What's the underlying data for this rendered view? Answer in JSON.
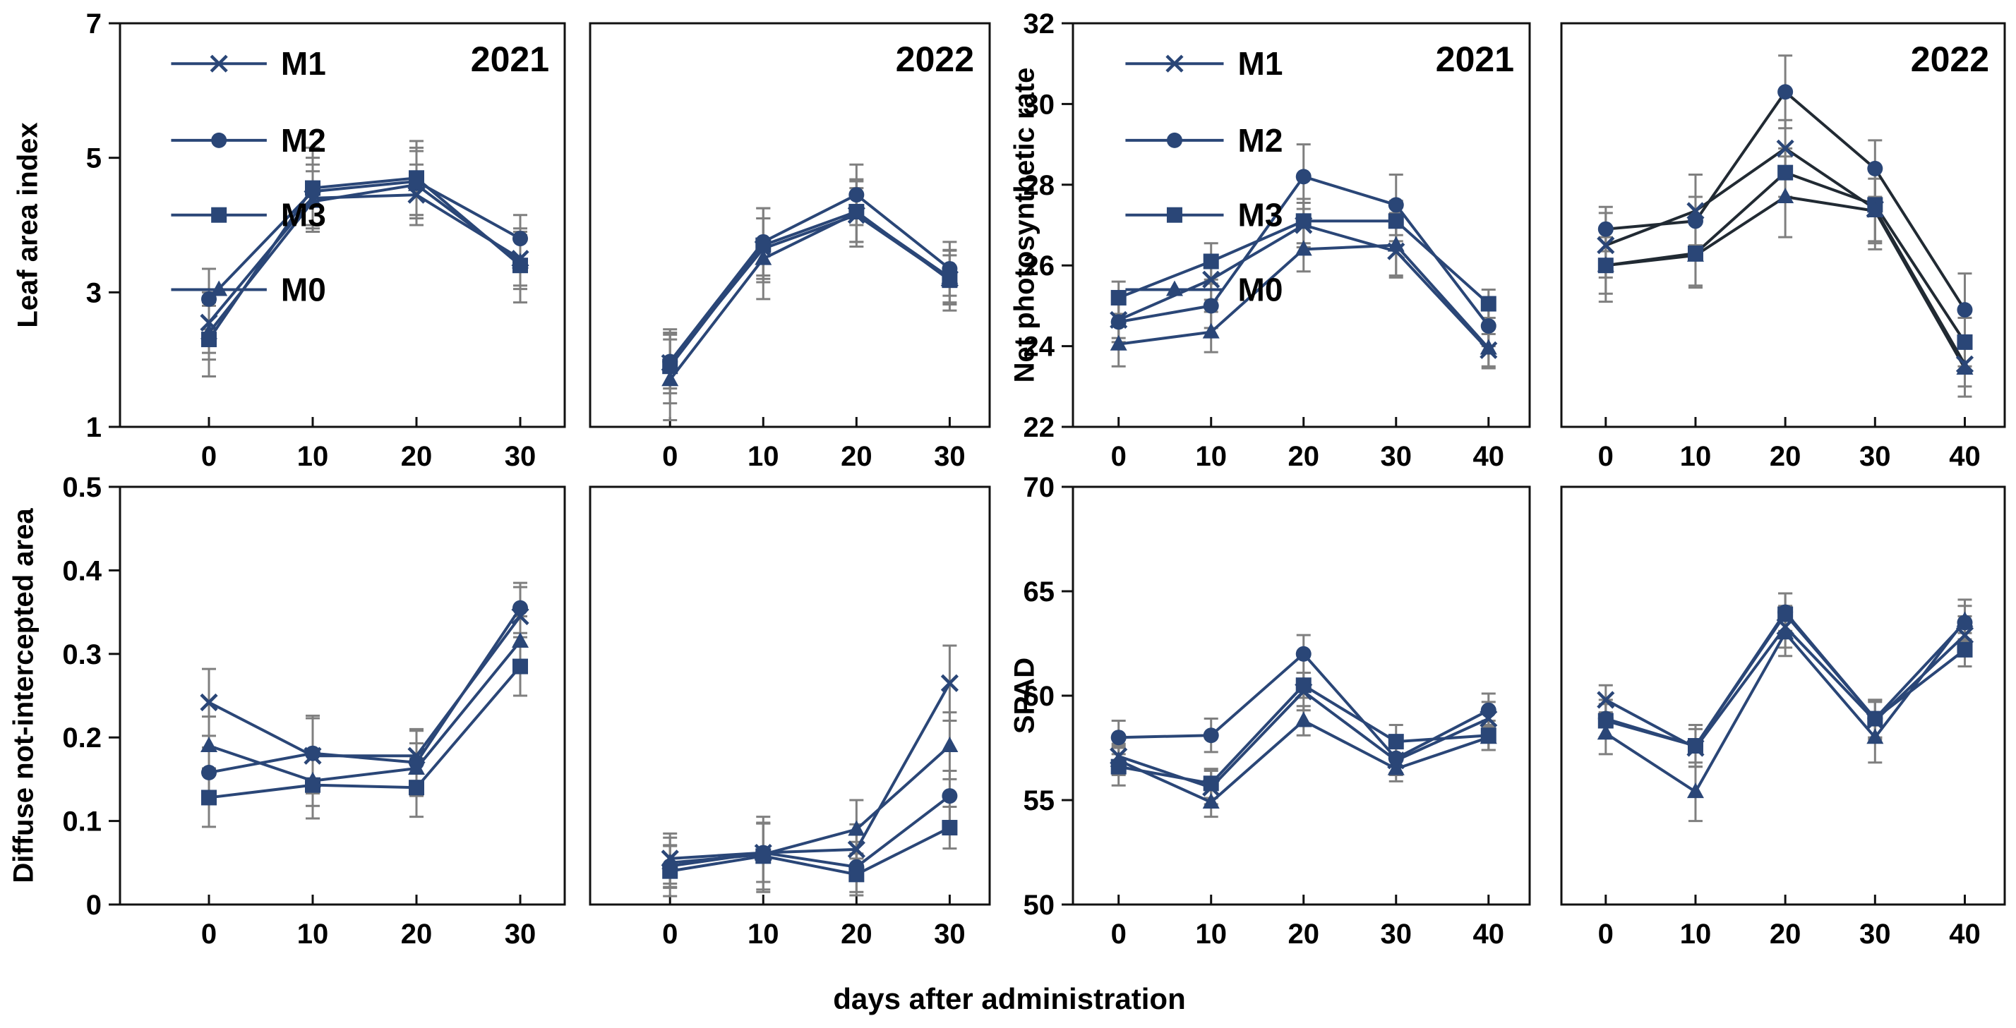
{
  "figure": {
    "xlabel": "days after administration",
    "series_color": "#2a4677",
    "error_color": "#7f7f7f",
    "axis_color": "#111111",
    "legend_labels": [
      "M1",
      "M2",
      "M3",
      "M0"
    ]
  },
  "chart_data": [
    {
      "id": "lai-2021",
      "type": "line",
      "title": "2021",
      "ylabel": "Leaf area index",
      "x": [
        0,
        10,
        20,
        30
      ],
      "xtick_labels": [
        "0",
        "10",
        "20",
        "30"
      ],
      "ylim": [
        1,
        7
      ],
      "yticks": [
        1,
        3,
        5,
        7
      ],
      "ytick_labels": [
        "1",
        "3",
        "5",
        "7"
      ],
      "show_y_tick_labels": true,
      "legend": true,
      "series": [
        {
          "name": "M1",
          "marker": "x",
          "values": [
            2.55,
            4.4,
            4.45,
            3.5
          ],
          "err": [
            0.45,
            0.5,
            0.45,
            0.4
          ]
        },
        {
          "name": "M2",
          "marker": "circle",
          "values": [
            2.9,
            4.5,
            4.65,
            3.8
          ],
          "err": [
            0.45,
            0.5,
            0.5,
            0.35
          ]
        },
        {
          "name": "M3",
          "marker": "square",
          "values": [
            2.3,
            4.55,
            4.7,
            3.4
          ],
          "err": [
            0.55,
            0.6,
            0.55,
            0.55
          ]
        },
        {
          "name": "M0",
          "marker": "triangle",
          "values": [
            2.4,
            4.35,
            4.6,
            3.45
          ],
          "err": [
            0.4,
            0.45,
            0.5,
            0.4
          ]
        }
      ]
    },
    {
      "id": "lai-2022",
      "type": "line",
      "title": "2022",
      "ylabel": "",
      "x": [
        0,
        10,
        20,
        30
      ],
      "xtick_labels": [
        "0",
        "10",
        "20",
        "30"
      ],
      "ylim": [
        1,
        7
      ],
      "yticks": [
        1,
        3,
        5,
        7
      ],
      "ytick_labels": [
        "1",
        "3",
        "5",
        "7"
      ],
      "show_y_tick_labels": false,
      "legend": false,
      "series": [
        {
          "name": "M1",
          "marker": "x",
          "values": [
            1.95,
            3.65,
            4.15,
            3.2
          ],
          "err": [
            0.45,
            0.45,
            0.4,
            0.35
          ]
        },
        {
          "name": "M2",
          "marker": "circle",
          "values": [
            1.97,
            3.75,
            4.45,
            3.35
          ],
          "err": [
            0.4,
            0.5,
            0.45,
            0.4
          ]
        },
        {
          "name": "M3",
          "marker": "square",
          "values": [
            1.9,
            3.7,
            4.2,
            3.18
          ],
          "err": [
            0.55,
            0.55,
            0.45,
            0.45
          ]
        },
        {
          "name": "M0",
          "marker": "triangle",
          "values": [
            1.7,
            3.5,
            4.18,
            3.22
          ],
          "err": [
            0.6,
            0.6,
            0.5,
            0.4
          ]
        }
      ]
    },
    {
      "id": "npr-2021",
      "type": "line",
      "title": "2021",
      "ylabel": "Net photosynthetic rate",
      "x": [
        0,
        10,
        20,
        30,
        40
      ],
      "xtick_labels": [
        "0",
        "10",
        "20",
        "30",
        "40"
      ],
      "ylim": [
        22,
        32
      ],
      "yticks": [
        22,
        24,
        26,
        28,
        30,
        32
      ],
      "ytick_labels": [
        "22",
        "24",
        "26",
        "28",
        "30",
        "32"
      ],
      "show_y_tick_labels": true,
      "legend": true,
      "series": [
        {
          "name": "M1",
          "marker": "x",
          "values": [
            24.65,
            25.65,
            27.0,
            26.35,
            23.9
          ],
          "err": [
            0.45,
            0.5,
            0.55,
            0.6,
            0.4
          ]
        },
        {
          "name": "M2",
          "marker": "circle",
          "values": [
            24.6,
            25.0,
            28.2,
            27.5,
            24.5
          ],
          "err": [
            0.5,
            0.55,
            0.8,
            0.75,
            0.5
          ]
        },
        {
          "name": "M3",
          "marker": "square",
          "values": [
            25.2,
            26.1,
            27.1,
            27.1,
            25.05
          ],
          "err": [
            0.4,
            0.45,
            0.55,
            0.5,
            0.35
          ]
        },
        {
          "name": "M0",
          "marker": "triangle",
          "values": [
            24.05,
            24.35,
            26.4,
            26.5,
            23.95
          ],
          "err": [
            0.55,
            0.5,
            0.55,
            0.8,
            0.5
          ]
        }
      ]
    },
    {
      "id": "npr-2022",
      "type": "line",
      "title": "2022",
      "ylabel": "",
      "line_color": "#212a33",
      "x": [
        0,
        10,
        20,
        30,
        40
      ],
      "xtick_labels": [
        "0",
        "10",
        "20",
        "30",
        "40"
      ],
      "ylim": [
        22,
        32
      ],
      "yticks": [
        22,
        24,
        26,
        28,
        30,
        32
      ],
      "ytick_labels": [
        "22",
        "24",
        "26",
        "28",
        "30",
        "32"
      ],
      "show_y_tick_labels": false,
      "legend": false,
      "series": [
        {
          "name": "M1",
          "marker": "x",
          "values": [
            26.5,
            27.35,
            28.9,
            27.4,
            23.55
          ],
          "err": [
            0.8,
            0.9,
            0.7,
            1.0,
            0.55
          ]
        },
        {
          "name": "M2",
          "marker": "circle",
          "values": [
            26.9,
            27.1,
            30.3,
            28.4,
            24.9
          ],
          "err": [
            0.55,
            0.6,
            0.9,
            0.7,
            0.9
          ]
        },
        {
          "name": "M3",
          "marker": "square",
          "values": [
            26.0,
            26.3,
            28.3,
            27.5,
            24.1
          ],
          "err": [
            0.7,
            0.8,
            0.6,
            0.9,
            0.6
          ]
        },
        {
          "name": "M0",
          "marker": "triangle",
          "values": [
            26.0,
            26.25,
            27.7,
            27.35,
            23.45
          ],
          "err": [
            0.9,
            0.8,
            1.0,
            0.8,
            0.7
          ]
        }
      ]
    },
    {
      "id": "diffuse-2021",
      "type": "line",
      "title": "",
      "ylabel": "Diffuse not-intercepted area",
      "x": [
        0,
        10,
        20,
        30
      ],
      "xtick_labels": [
        "0",
        "10",
        "20",
        "30"
      ],
      "ylim": [
        0,
        0.5
      ],
      "yticks": [
        0,
        0.1,
        0.2,
        0.3,
        0.4,
        0.5
      ],
      "ytick_labels": [
        "0",
        "0.1",
        "0.2",
        "0.3",
        "0.4",
        "0.5"
      ],
      "show_y_tick_labels": true,
      "legend": false,
      "series": [
        {
          "name": "M1",
          "marker": "x",
          "values": [
            0.242,
            0.178,
            0.178,
            0.345
          ],
          "err": [
            0.04,
            0.045,
            0.03,
            0.035
          ]
        },
        {
          "name": "M2",
          "marker": "circle",
          "values": [
            0.158,
            0.181,
            0.17,
            0.355
          ],
          "err": [
            0.03,
            0.045,
            0.04,
            0.03
          ]
        },
        {
          "name": "M3",
          "marker": "square",
          "values": [
            0.128,
            0.143,
            0.14,
            0.285
          ],
          "err": [
            0.035,
            0.04,
            0.035,
            0.035
          ]
        },
        {
          "name": "M0",
          "marker": "triangle",
          "values": [
            0.19,
            0.148,
            0.163,
            0.315
          ],
          "err": [
            0.035,
            0.03,
            0.03,
            0.03
          ]
        }
      ]
    },
    {
      "id": "diffuse-2022",
      "type": "line",
      "title": "",
      "ylabel": "",
      "x": [
        0,
        10,
        20,
        30
      ],
      "xtick_labels": [
        "0",
        "10",
        "20",
        "30"
      ],
      "ylim": [
        0,
        0.5
      ],
      "yticks": [
        0,
        0.1,
        0.2,
        0.3,
        0.4,
        0.5
      ],
      "ytick_labels": [
        "0",
        "0.1",
        "0.2",
        "0.3",
        "0.4",
        "0.5"
      ],
      "show_y_tick_labels": false,
      "legend": false,
      "series": [
        {
          "name": "M1",
          "marker": "x",
          "values": [
            0.055,
            0.062,
            0.066,
            0.265
          ],
          "err": [
            0.03,
            0.035,
            0.03,
            0.045
          ]
        },
        {
          "name": "M2",
          "marker": "circle",
          "values": [
            0.046,
            0.062,
            0.045,
            0.13
          ],
          "err": [
            0.025,
            0.035,
            0.03,
            0.03
          ]
        },
        {
          "name": "M3",
          "marker": "square",
          "values": [
            0.04,
            0.058,
            0.036,
            0.092
          ],
          "err": [
            0.03,
            0.04,
            0.025,
            0.025
          ]
        },
        {
          "name": "M0",
          "marker": "triangle",
          "values": [
            0.05,
            0.06,
            0.09,
            0.19
          ],
          "err": [
            0.03,
            0.045,
            0.035,
            0.04
          ]
        }
      ]
    },
    {
      "id": "spad-2021",
      "type": "line",
      "title": "",
      "ylabel": "SPAD",
      "x": [
        0,
        10,
        20,
        30,
        40
      ],
      "xtick_labels": [
        "0",
        "10",
        "20",
        "30",
        "40"
      ],
      "ylim": [
        50,
        70
      ],
      "yticks": [
        50,
        55,
        60,
        65,
        70
      ],
      "ytick_labels": [
        "50",
        "55",
        "60",
        "65",
        "70"
      ],
      "show_y_tick_labels": true,
      "legend": false,
      "series": [
        {
          "name": "M1",
          "marker": "x",
          "values": [
            57.1,
            55.6,
            60.2,
            56.9,
            58.9
          ],
          "err": [
            0.6,
            0.8,
            0.9,
            0.6,
            0.8
          ]
        },
        {
          "name": "M2",
          "marker": "circle",
          "values": [
            58.0,
            58.1,
            62.0,
            57.0,
            59.3
          ],
          "err": [
            0.8,
            0.8,
            0.9,
            0.8,
            0.8
          ]
        },
        {
          "name": "M3",
          "marker": "square",
          "values": [
            56.6,
            55.8,
            60.5,
            57.8,
            58.1
          ],
          "err": [
            0.9,
            0.7,
            0.6,
            0.8,
            0.7
          ]
        },
        {
          "name": "M0",
          "marker": "triangle",
          "values": [
            56.9,
            54.9,
            58.8,
            56.5,
            58.0
          ],
          "err": [
            0.7,
            0.7,
            0.7,
            0.6,
            0.6
          ]
        }
      ]
    },
    {
      "id": "spad-2022",
      "type": "line",
      "title": "",
      "ylabel": "",
      "x": [
        0,
        10,
        20,
        30,
        40
      ],
      "xtick_labels": [
        "0",
        "10",
        "20",
        "30",
        "40"
      ],
      "ylim": [
        50,
        70
      ],
      "yticks": [
        50,
        55,
        60,
        65,
        70
      ],
      "ytick_labels": [
        "50",
        "55",
        "60",
        "65",
        "70"
      ],
      "show_y_tick_labels": false,
      "legend": false,
      "series": [
        {
          "name": "M1",
          "marker": "x",
          "values": [
            59.8,
            57.5,
            63.3,
            58.8,
            62.9
          ],
          "err": [
            0.7,
            0.9,
            1.0,
            0.9,
            0.9
          ]
        },
        {
          "name": "M2",
          "marker": "circle",
          "values": [
            58.9,
            57.6,
            64.0,
            58.9,
            63.5
          ],
          "err": [
            0.9,
            1.0,
            0.9,
            0.9,
            0.8
          ]
        },
        {
          "name": "M3",
          "marker": "square",
          "values": [
            58.8,
            57.6,
            63.9,
            58.9,
            62.2
          ],
          "err": [
            0.8,
            1.0,
            1.0,
            0.9,
            0.8
          ]
        },
        {
          "name": "M0",
          "marker": "triangle",
          "values": [
            58.2,
            55.4,
            63.0,
            58.0,
            63.6
          ],
          "err": [
            1.0,
            1.4,
            1.1,
            1.2,
            1.0
          ]
        }
      ]
    }
  ]
}
